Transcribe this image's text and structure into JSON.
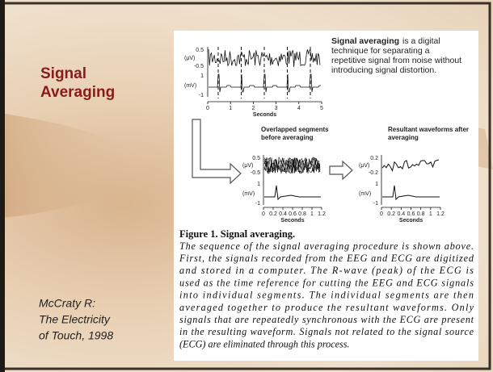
{
  "slide": {
    "title_lines": [
      "Signal",
      "Averaging"
    ],
    "citation_lines": [
      "McCraty R:",
      "The Electricity",
      "of Touch, 1998"
    ]
  },
  "figure": {
    "intro_bold": "Signal averaging",
    "intro_lines": [
      "is a digital",
      "technique for separating a",
      "repetitive signal from noise without",
      "introducing signal distortion."
    ],
    "top_panel": {
      "eeg_unit": "(μV)",
      "eeg_ticks": [
        "0.5",
        "-0.5"
      ],
      "ecg_unit": "(mV)",
      "ecg_ticks": [
        "1",
        "-1"
      ],
      "x_ticks": [
        "0",
        "1",
        "2",
        "3",
        "4",
        "5"
      ],
      "x_label": "Seconds"
    },
    "overlap_panel": {
      "title_lines": [
        "Overlapped segments",
        "before averaging"
      ],
      "eeg_unit": "(μV)",
      "eeg_ticks": [
        "0.5",
        "-0.5"
      ],
      "ecg_unit": "(mV)",
      "ecg_ticks": [
        "1",
        "-1"
      ],
      "x_ticks": [
        "0",
        "0.2",
        "0.4",
        "0.6",
        "0.8",
        "1",
        "1.2"
      ],
      "x_label": "Seconds"
    },
    "result_panel": {
      "title_lines": [
        "Resultant waveforms after",
        "averaging"
      ],
      "eeg_unit": "(μV)",
      "eeg_ticks": [
        "0.2",
        "-0.2"
      ],
      "ecg_unit": "(mV)",
      "ecg_ticks": [
        "1",
        "-1"
      ],
      "x_ticks": [
        "0",
        "0.2",
        "0.4",
        "0.6",
        "0.8",
        "1",
        "1.2"
      ],
      "x_label": "Seconds"
    },
    "caption_title": "Figure 1. Signal averaging.",
    "caption_lines": [
      "The sequence of the signal averaging procedure is shown above.",
      "First, the signals recorded from the EEG and ECG are digitized",
      "and stored in a computer. The R-wave (peak) of the ECG is",
      "used as the time reference for cutting the EEG and ECG signals",
      "into individual segments. The individual segments are then",
      "averaged together to produce the resultant waveforms. Only",
      "signals that are repeatedly synchronous with the ECG are present",
      "in the resulting waveform. Signals not related to the signal source",
      "(ECG) are eliminated through this process."
    ]
  }
}
